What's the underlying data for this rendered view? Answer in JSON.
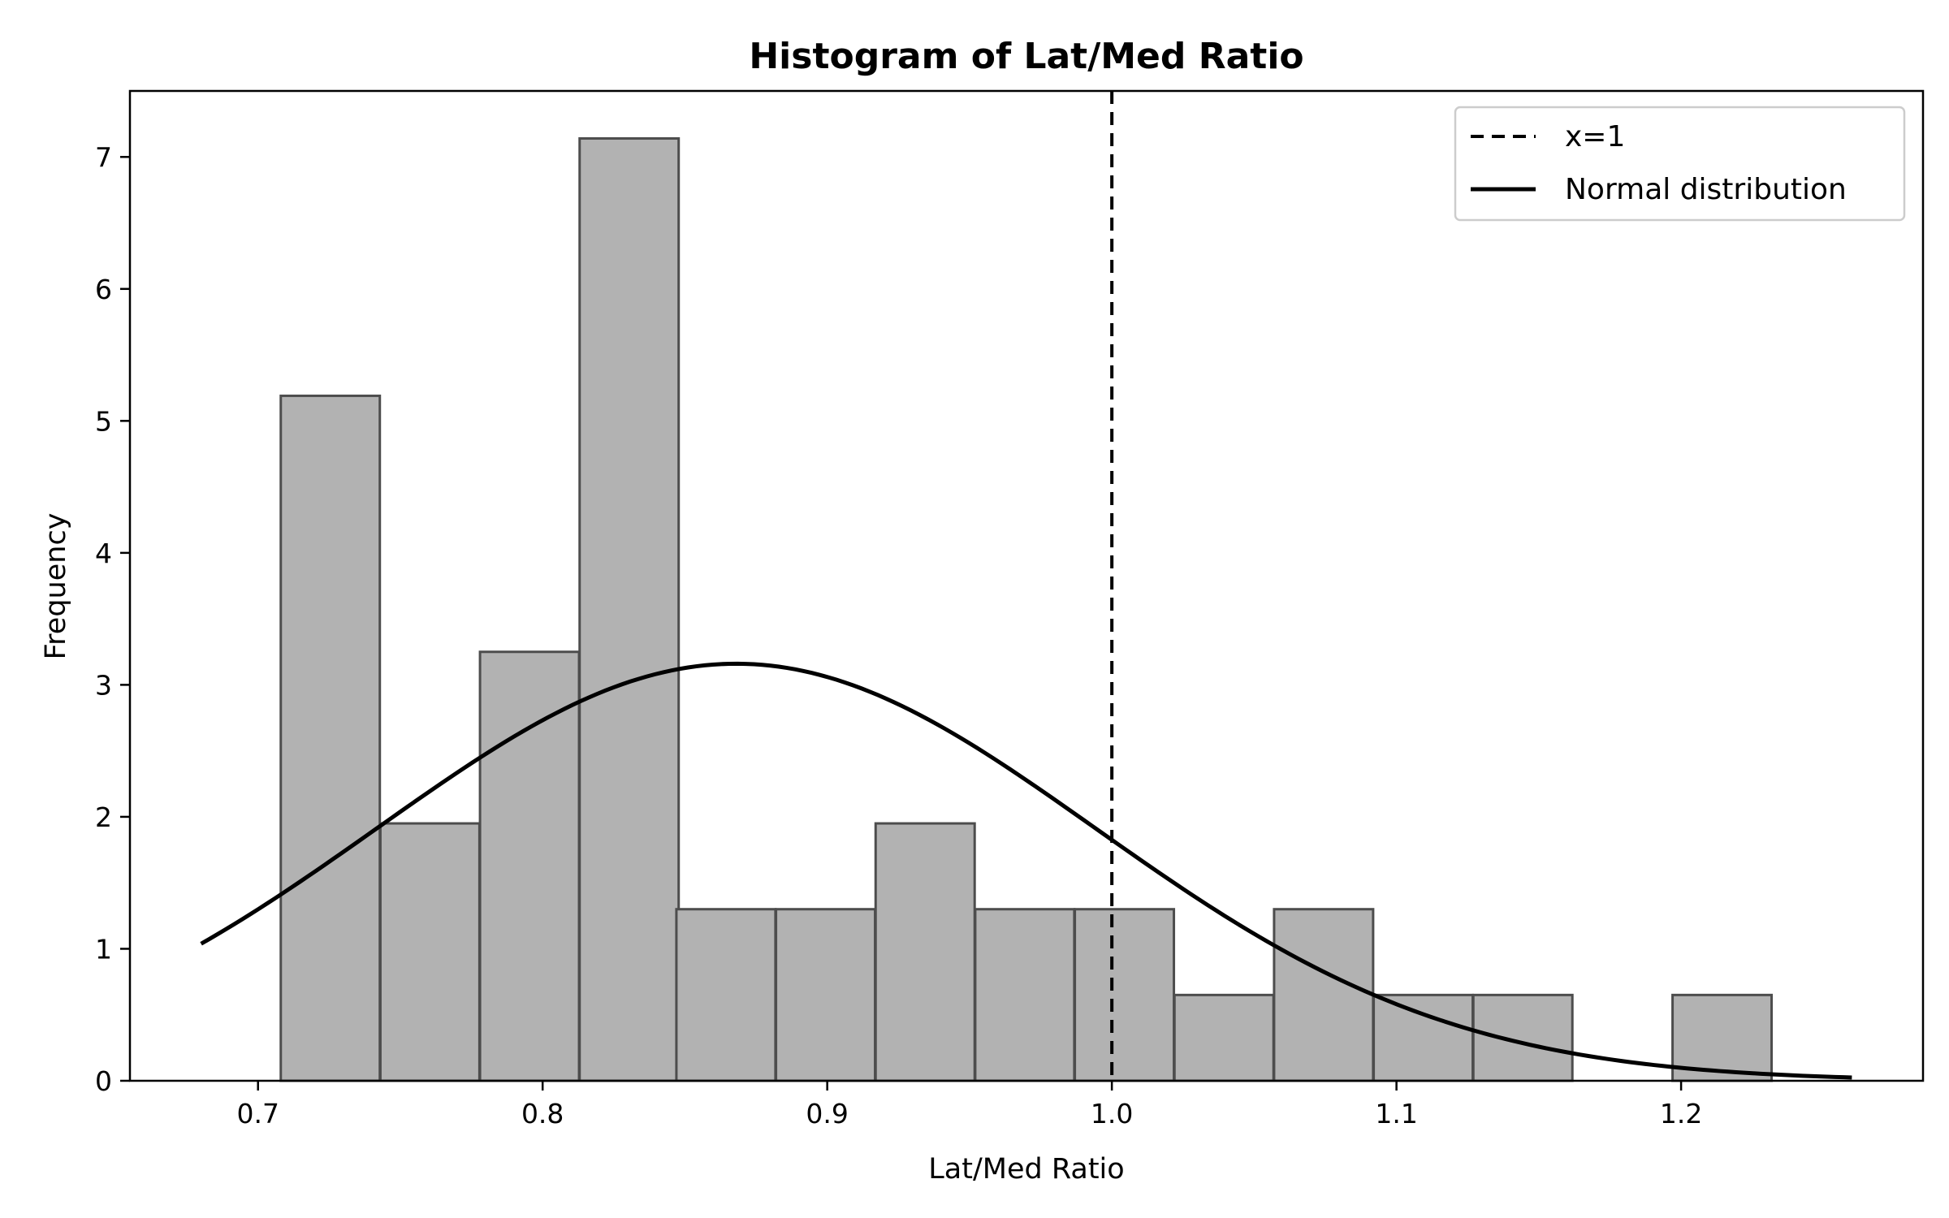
{
  "chart_data": {
    "type": "bar",
    "title": "Histogram of Lat/Med Ratio",
    "xlabel": "Lat/Med Ratio",
    "ylabel": "Frequency",
    "xlim": [
      0.655,
      1.285
    ],
    "ylim": [
      0,
      7.5
    ],
    "xticks": [
      0.7,
      0.8,
      0.9,
      1.0,
      1.1,
      1.2
    ],
    "xtick_labels": [
      "0.7",
      "0.8",
      "0.9",
      "1.0",
      "1.1",
      "1.2"
    ],
    "yticks": [
      0,
      1,
      2,
      3,
      4,
      5,
      6,
      7
    ],
    "ytick_labels": [
      "0",
      "1",
      "2",
      "3",
      "4",
      "5",
      "6",
      "7"
    ],
    "grid": false,
    "legend_position": "top-right",
    "bin_width": 0.0348,
    "bins": [
      {
        "x0": 0.708,
        "value": 5.19
      },
      {
        "x0": 0.743,
        "value": 1.95
      },
      {
        "x0": 0.778,
        "value": 3.25
      },
      {
        "x0": 0.813,
        "value": 7.14
      },
      {
        "x0": 0.847,
        "value": 1.3
      },
      {
        "x0": 0.882,
        "value": 1.3
      },
      {
        "x0": 0.917,
        "value": 1.95
      },
      {
        "x0": 0.952,
        "value": 1.3
      },
      {
        "x0": 0.987,
        "value": 1.3
      },
      {
        "x0": 1.022,
        "value": 0.65
      },
      {
        "x0": 1.057,
        "value": 1.3
      },
      {
        "x0": 1.092,
        "value": 0.65
      },
      {
        "x0": 1.127,
        "value": 0.65
      },
      {
        "x0": 1.162,
        "value": 0
      },
      {
        "x0": 1.197,
        "value": 0.65
      }
    ],
    "vline": {
      "x": 1.0,
      "label": "x=1"
    },
    "normal_curve": {
      "label": "Normal distribution",
      "mean": 0.868,
      "std": 0.126,
      "peak": 3.16,
      "x_range": [
        0.68,
        1.26
      ]
    },
    "colors": {
      "bar_fill": "#b2b2b2",
      "bar_edge": "#4d4d4d",
      "line": "#000000"
    }
  }
}
